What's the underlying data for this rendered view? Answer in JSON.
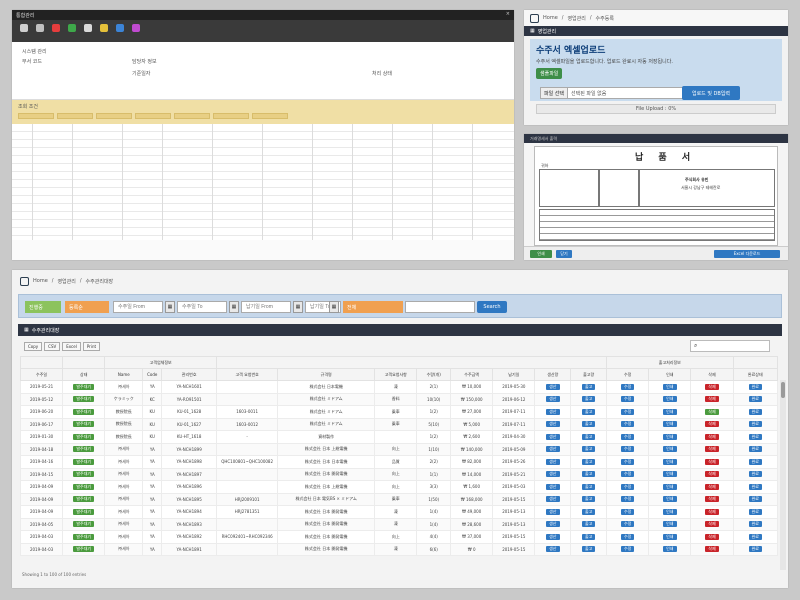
{
  "panel1": {
    "window_title": "통합관리",
    "close_glyph": "×",
    "ribbon_colors": [
      "#cfcfcf",
      "#c0c0c0",
      "#e53d3d",
      "#3ea84a",
      "#d9d9d9",
      "#e4c03a",
      "#3c84d6",
      "#c04bd1"
    ],
    "info_lines": [
      "시스템 관리",
      "부서 코드",
      "담당자 정보",
      "기준일자",
      "처리 상태"
    ],
    "filter_title": "조회 조건"
  },
  "panel2": {
    "breadcrumb": [
      "Home",
      "영업관리",
      "수주등록"
    ],
    "section_title": "영업관리",
    "upload_title": "수주서 엑셀업로드",
    "upload_desc": "수주서 엑셀파일을 업로드합니다. 업로드 완료시 자동 저장됩니다.",
    "sample_button": "샘플파일",
    "file_button": "파일 선택",
    "file_hint": "선택된 파일 없음",
    "upload_button": "업로드 및 DB입력",
    "upload_status": "File Upload : 0%"
  },
  "panel3": {
    "header": "거래명세서 출력",
    "invoice_title": "납 품 서",
    "company_name": "주식회사 유빈",
    "company_addr": "서울시 강남구 테헤란로",
    "recipient_label": "귀하",
    "print_button": "인쇄",
    "close_button": "닫기",
    "footer_button": "Excel 다운로드"
  },
  "panel4": {
    "breadcrumb": [
      "Home",
      "영업관리",
      "수주관리대장"
    ],
    "search": {
      "status_select": "진행중",
      "sort_select": "등록순",
      "order_from_ph": "수주일 From",
      "order_to_ph": "수주일 To",
      "ship_from_ph": "납기일 From",
      "ship_to_ph": "납기일 To",
      "type_select": "전체",
      "keyword_ph": "",
      "search_button": "Search",
      "cal_glyph": "▦"
    },
    "list_title": "수주관리대장",
    "tool_buttons": [
      "Copy",
      "CSV",
      "Excel",
      "Print"
    ],
    "qsearch_glyph": "⌕",
    "group_headers": {
      "customer": "고객업체정보",
      "actions": "출고처리정보"
    },
    "columns": [
      "수주일",
      "상태",
      "Name",
      "Code",
      "관리번호",
      "고객 요청번호",
      "규격명",
      "고객요청사항",
      "수량(개)",
      "수주금액",
      "납기일",
      "생산량",
      "출고량",
      "수정",
      "인쇄",
      "삭제",
      "완료상태"
    ],
    "rows": [
      {
        "date": "2019-05-21",
        "status": "발주대기",
        "name": "㈜세아",
        "code": "YA",
        "mgmt": "YA-NCH1601",
        "req": "",
        "spec": "株式会社 日本電機",
        "note": "凍",
        "qty": "2(1)",
        "amt": "₩ 10,000",
        "due": "2019-05-30",
        "prod": "생산",
        "ship": "출고"
      },
      {
        "date": "2019-05-12",
        "status": "발주대기",
        "name": "ケラミック",
        "code": "KC",
        "mgmt": "YA-RO91501",
        "req": "",
        "spec": "株式会社 ミドアム",
        "note": "香料",
        "qty": "10(10)",
        "amt": "₩ 150,000",
        "due": "2019-06-12",
        "prod": "생산",
        "ship": "출고"
      },
      {
        "date": "2019-06-20",
        "status": "발주대기",
        "name": "教授院長",
        "code": "KU",
        "mgmt": "KU-01_1628",
        "req": "1603-0011",
        "spec": "株式会社 ミドアム",
        "note": "乗車",
        "qty": "1(2)",
        "amt": "₩ 27,000",
        "due": "2019-07-11",
        "prod": "생산",
        "ship": "출고"
      },
      {
        "date": "2019-06-17",
        "status": "발주대기",
        "name": "教授院長",
        "code": "KU",
        "mgmt": "KU-01_1627",
        "req": "1603-0012",
        "spec": "株式会社 ミドアム",
        "note": "乗車",
        "qty": "5(10)",
        "amt": "₩ 5,000",
        "due": "2019-07-11",
        "prod": "생산",
        "ship": "출고"
      },
      {
        "date": "2019-01-30",
        "status": "발주대기",
        "name": "教授院長",
        "code": "KU",
        "mgmt": "KU-HT_1618",
        "req": "-",
        "spec": "資材製作",
        "note": "",
        "qty": "1(2)",
        "amt": "₩ 2,600",
        "due": "2019-04-30",
        "prod": "생산",
        "ship": "출고"
      },
      {
        "date": "2019-04-18",
        "status": "발주대기",
        "name": "㈜세아",
        "code": "YA",
        "mgmt": "YA-NCH1899",
        "req": "",
        "spec": "株式会社 日本 上総電機",
        "note": "向上",
        "qty": "1(10)",
        "amt": "₩ 140,000",
        "due": "2019-05-09",
        "prod": "생산",
        "ship": "출고"
      },
      {
        "date": "2019-04-16",
        "status": "발주대기",
        "name": "㈜세아",
        "code": "YA",
        "mgmt": "YA-NCH1898",
        "req": "QHC100801~QHC100082",
        "spec": "株式会社 日本 日本電機",
        "note": "品質",
        "qty": "2(2)",
        "amt": "₩ 82,000",
        "due": "2019-05-26",
        "prod": "생산",
        "ship": "출고"
      },
      {
        "date": "2019-04-15",
        "status": "발주대기",
        "name": "㈜세아",
        "code": "YA",
        "mgmt": "YA-NCH1897",
        "req": "",
        "spec": "株式会社 日本 開発電機",
        "note": "向上",
        "qty": "1(1)",
        "amt": "₩ 14,000",
        "due": "2019-05-21",
        "prod": "생산",
        "ship": "출고"
      },
      {
        "date": "2019-04-09",
        "status": "발주대기",
        "name": "㈜세아",
        "code": "YA",
        "mgmt": "YA-NCH1896",
        "req": "",
        "spec": "株式会社 日本 上総電機",
        "note": "向上",
        "qty": "3(3)",
        "amt": "₩ 1,600",
        "due": "2019-05-03",
        "prod": "생산",
        "ship": "출고"
      },
      {
        "date": "2019-04-09",
        "status": "발주대기",
        "name": "㈜세아",
        "code": "YA",
        "mgmt": "YA-NCH1895",
        "req": "HRJ2009101",
        "spec": "株式会社 日本 電気BS × ミドアム",
        "note": "乗車",
        "qty": "1(50)",
        "amt": "₩ 168,000",
        "due": "2019-05-15",
        "prod": "생산",
        "ship": "출고"
      },
      {
        "date": "2019-04-09",
        "status": "발주대기",
        "name": "㈜세아",
        "code": "YA",
        "mgmt": "YA-NCH1894",
        "req": "HRJ2781351",
        "spec": "株式会社 日本 開発電機",
        "note": "凍",
        "qty": "1(4)",
        "amt": "₩ 49,000",
        "due": "2019-05-13",
        "prod": "생산",
        "ship": "출고"
      },
      {
        "date": "2019-04-05",
        "status": "발주대기",
        "name": "㈜세아",
        "code": "YA",
        "mgmt": "YA-NCH1893",
        "req": "",
        "spec": "株式会社 日本 開発電機",
        "note": "凍",
        "qty": "1(4)",
        "amt": "₩ 28,600",
        "due": "2019-05-13",
        "prod": "생산",
        "ship": "출고"
      },
      {
        "date": "2019-04-03",
        "status": "발주대기",
        "name": "㈜세아",
        "code": "YA",
        "mgmt": "YA-NCH1892",
        "req": "RHC092401~RHC092346",
        "spec": "株式会社 日本 開発電機",
        "note": "向上",
        "qty": "4(4)",
        "amt": "₩ 37,000",
        "due": "2019-05-15",
        "prod": "생산",
        "ship": "출고"
      },
      {
        "date": "2019-04-03",
        "status": "발주대기",
        "name": "㈜세아",
        "code": "YA",
        "mgmt": "YA-NCH1891",
        "req": "",
        "spec": "株式会社 日本 開発電機",
        "note": "凍",
        "qty": "6(6)",
        "amt": "₩ 0",
        "due": "2019-05-15",
        "prod": "생산",
        "ship": "출고"
      }
    ],
    "action_labels": {
      "edit": "수정",
      "print": "인쇄",
      "delete": "삭제",
      "done": "완료",
      "done_done": "완료"
    },
    "footer": "Showing 1 to 100 of 100 entries"
  }
}
